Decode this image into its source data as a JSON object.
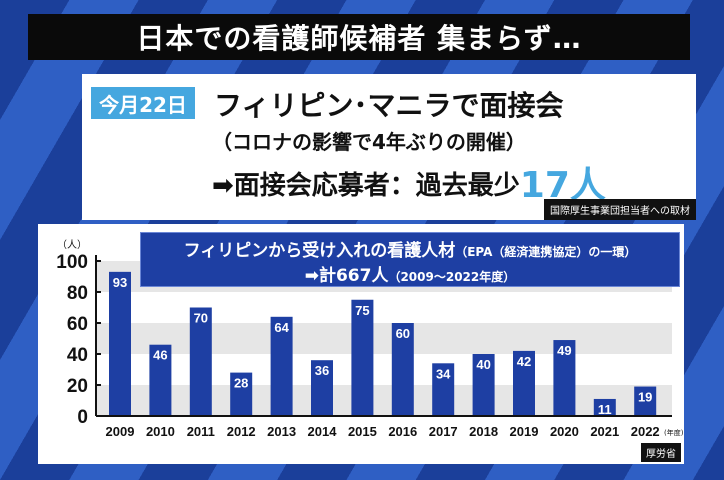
{
  "headline": "日本での看護師候補者 集まらず…",
  "info": {
    "date_badge": "今月22日",
    "line1": "フィリピン･マニラで面接会",
    "line2": "（コロナの影響で4年ぶりの開催）",
    "line3_prefix": "➡面接会応募者：過去最少",
    "line3_highlight": "17人",
    "source": "国際厚生事業団担当者への取材",
    "highlight_color": "#45a7df"
  },
  "chart_header": {
    "line1": "フィリピンから受け入れの看護人材",
    "line1_small": "（EPA（経済連携協定）の一環）",
    "line2": "➡計667人",
    "line2_small": "（2009～2022年度）"
  },
  "chart_data": {
    "type": "bar",
    "categories": [
      "2009",
      "2010",
      "2011",
      "2012",
      "2013",
      "2014",
      "2015",
      "2016",
      "2017",
      "2018",
      "2019",
      "2020",
      "2021",
      "2022"
    ],
    "values": [
      93,
      46,
      70,
      28,
      64,
      36,
      75,
      60,
      34,
      40,
      42,
      49,
      11,
      19
    ],
    "ylabel": "（人）",
    "xlabel": "(年度)",
    "ylim": [
      0,
      100
    ],
    "yticks": [
      0,
      20,
      40,
      60,
      80,
      100
    ],
    "bar_color": "#1e3fa3",
    "grid": "alternating bands",
    "source": "厚労省"
  }
}
